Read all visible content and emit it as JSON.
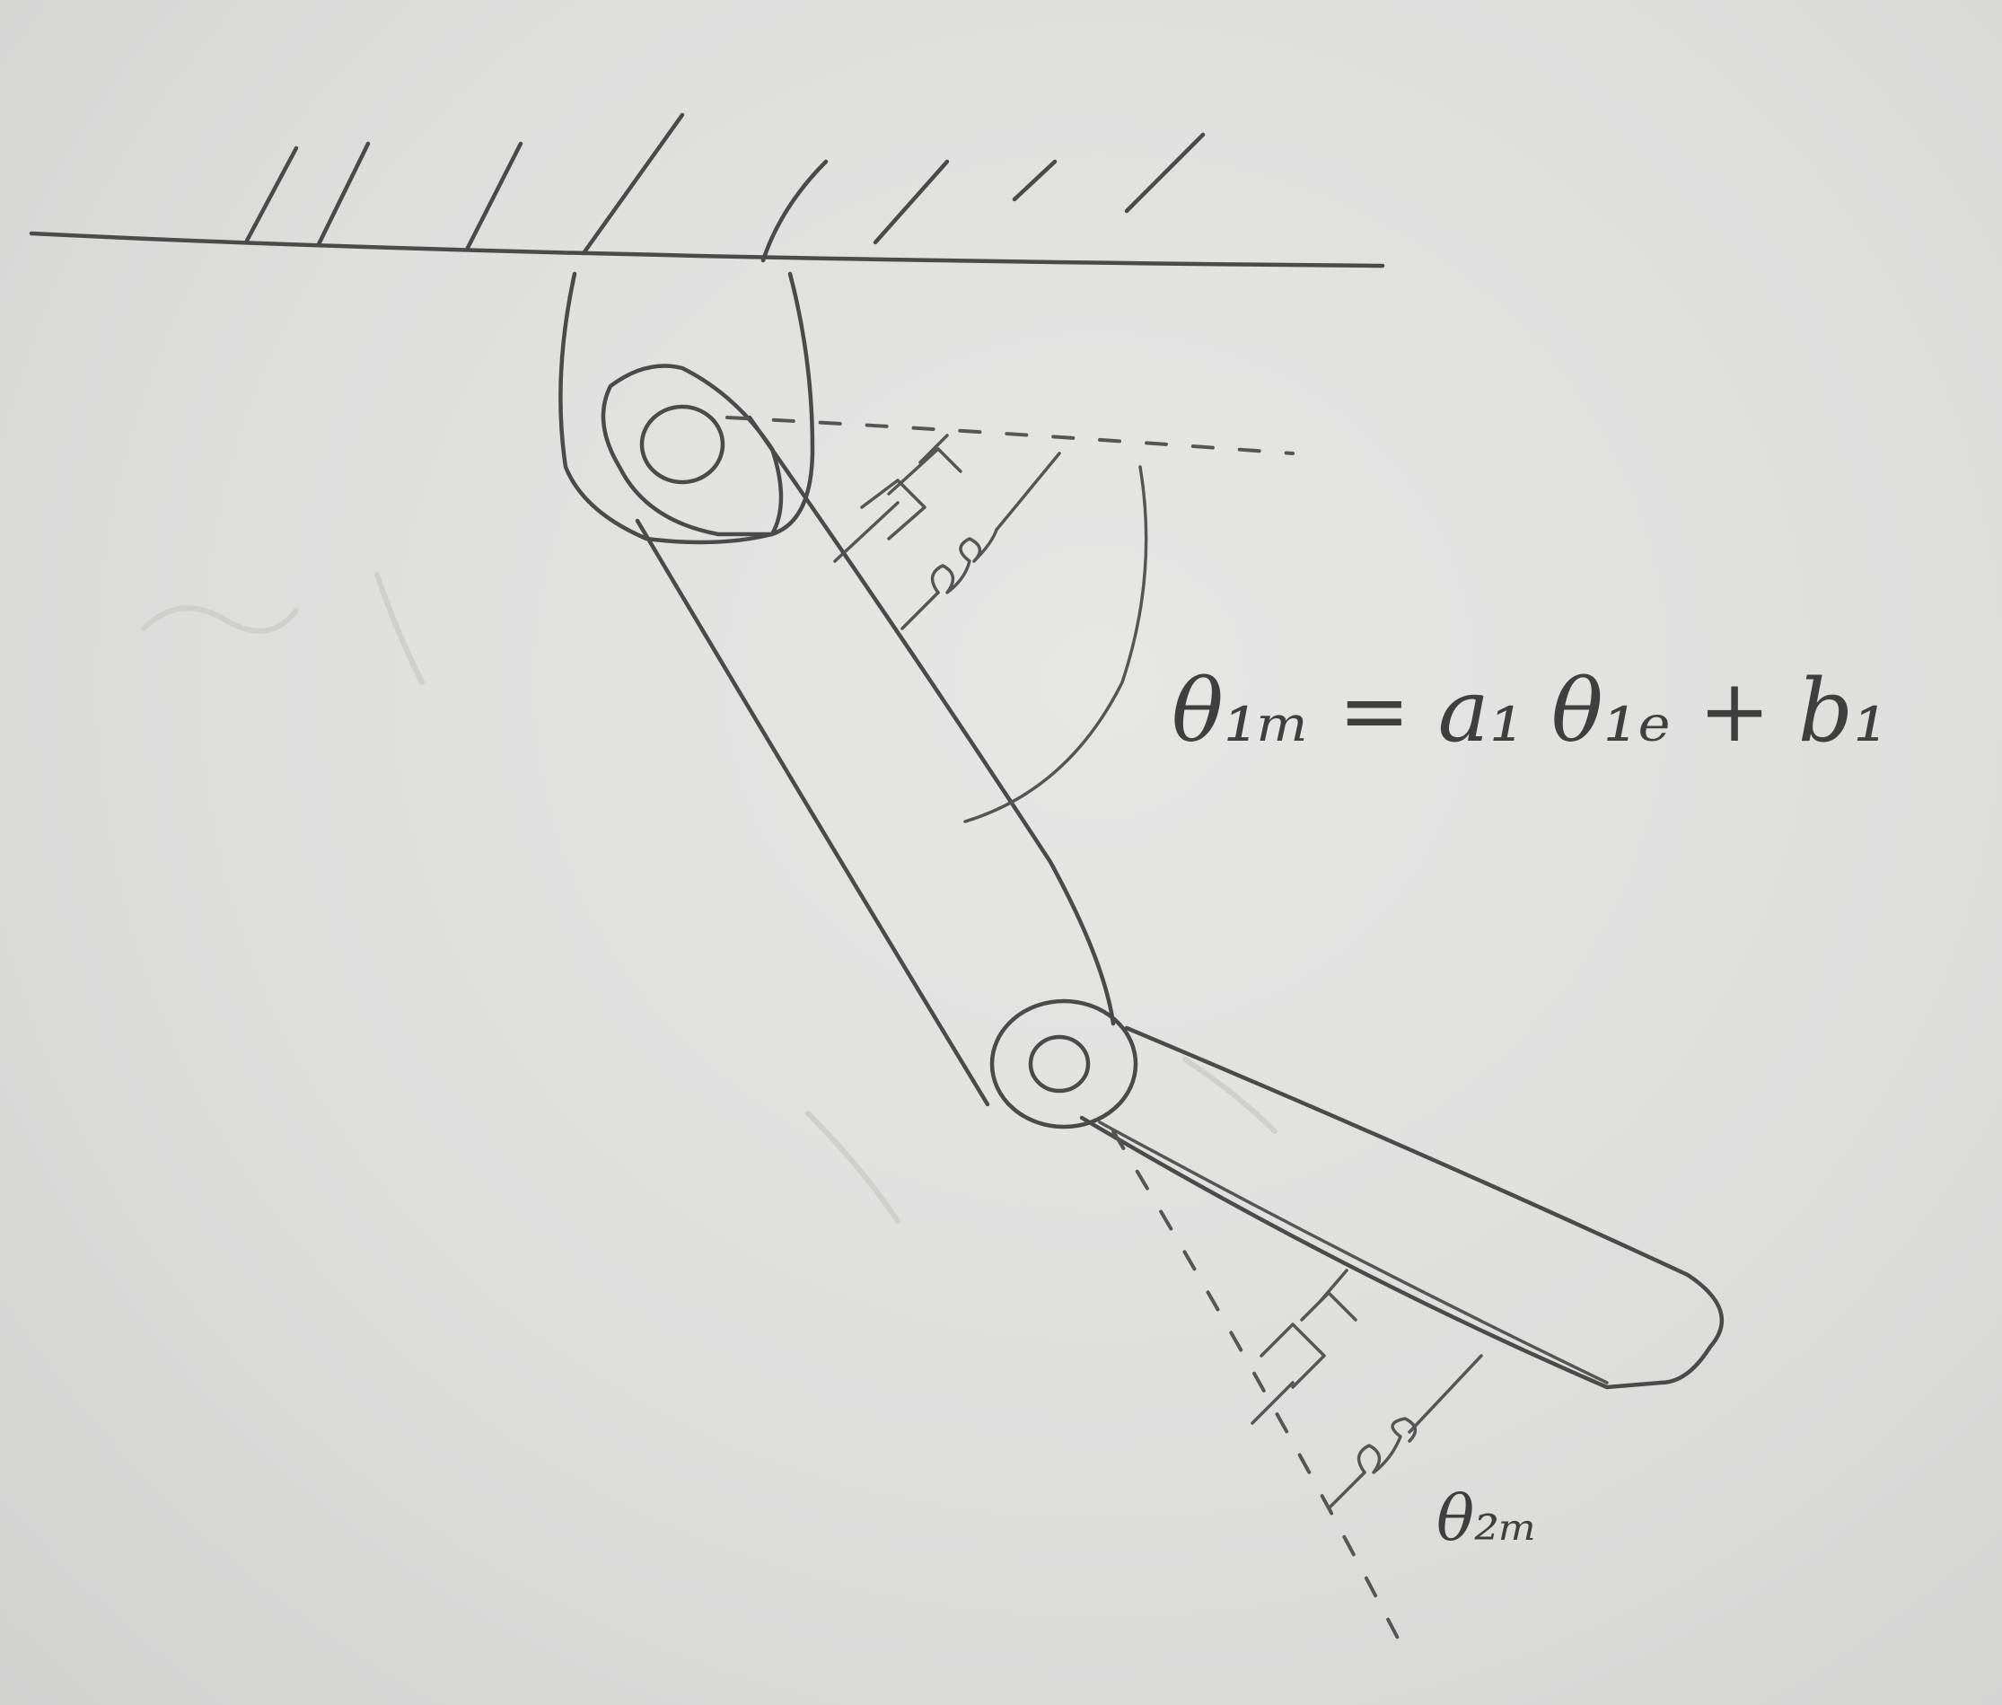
{
  "labels": {
    "theta1m_equation": "θ₁ₘ = a₁ θ₁ₑ + b₁",
    "theta2m": "θ₂ₘ"
  },
  "colors": {
    "paper": "#dedede",
    "pencil": "#4a4a4a"
  }
}
